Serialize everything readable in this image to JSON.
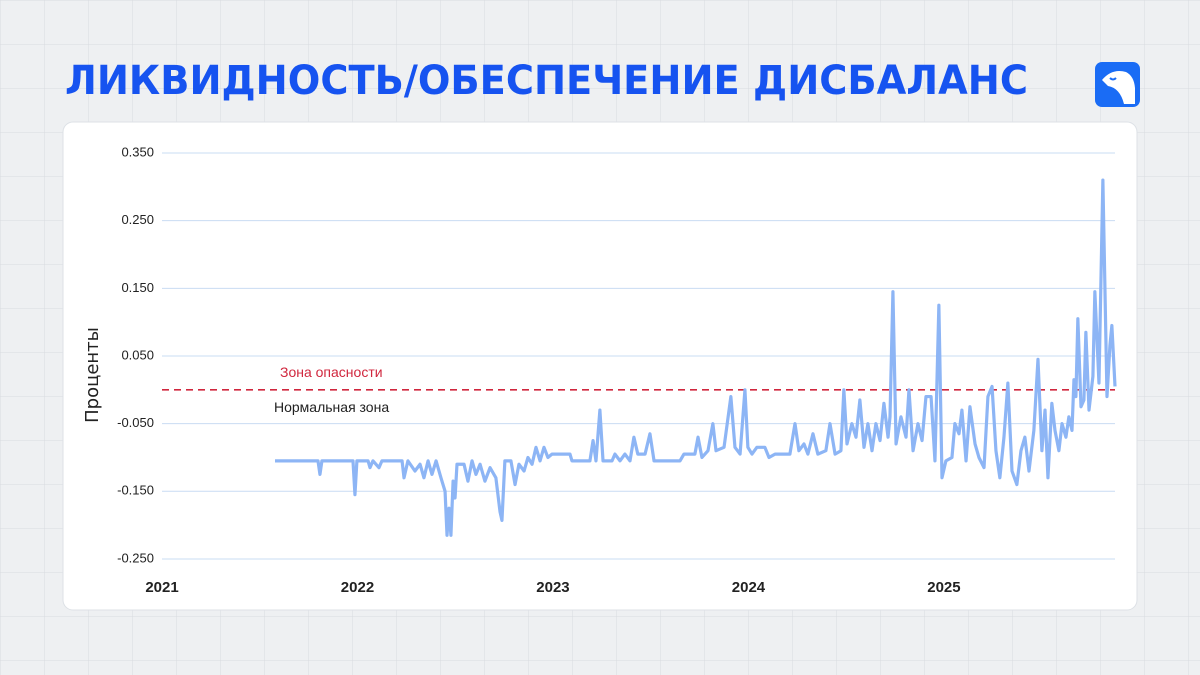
{
  "title": "ЛИКВИДНОСТЬ/ОБЕСПЕЧЕНИЕ ДИСБАЛАНС",
  "chart_data": {
    "type": "line",
    "ylabel": "Проценты",
    "xlim": [
      2021,
      2025.875
    ],
    "xticks": [
      2021,
      2022,
      2023,
      2024,
      2025
    ],
    "ylim": [
      -0.27,
      0.35
    ],
    "yticks": [
      {
        "value": -0.25,
        "label": "-0.250"
      },
      {
        "value": -0.15,
        "label": "-0.150"
      },
      {
        "value": -0.05,
        "label": "-0.050"
      },
      {
        "value": 0.05,
        "label": "0.050"
      },
      {
        "value": 0.15,
        "label": "0.150"
      },
      {
        "value": 0.25,
        "label": "0.250"
      },
      {
        "value": 0.35,
        "label": "0.350"
      }
    ],
    "grid": true,
    "threshold": {
      "value": 0,
      "color": "#d0273e",
      "above_label": "Зона опасности",
      "below_label": "Нормальная зона"
    },
    "series": [
      {
        "color": "#8db5f5",
        "x": [
          2021.578,
          2021.798,
          2021.808,
          2021.818,
          2021.977,
          2021.987,
          2021.997,
          2022.054,
          2022.064,
          2022.079,
          2022.11,
          2022.125,
          2022.228,
          2022.238,
          2022.258,
          2022.294,
          2022.32,
          2022.34,
          2022.361,
          2022.381,
          2022.402,
          2022.427,
          2022.448,
          2022.458,
          2022.468,
          2022.478,
          2022.489,
          2022.499,
          2022.509,
          2022.545,
          2022.565,
          2022.586,
          2022.606,
          2022.627,
          2022.652,
          2022.678,
          2022.708,
          2022.729,
          2022.739,
          2022.754,
          2022.785,
          2022.806,
          2022.826,
          2022.852,
          2022.872,
          2022.893,
          2022.913,
          2022.934,
          2022.954,
          2022.974,
          2022.995,
          2023.087,
          2023.097,
          2023.189,
          2023.205,
          2023.22,
          2023.24,
          2023.256,
          2023.302,
          2023.317,
          2023.343,
          2023.368,
          2023.394,
          2023.414,
          2023.434,
          2023.471,
          2023.496,
          2023.517,
          2023.65,
          2023.67,
          2023.726,
          2023.742,
          2023.762,
          2023.793,
          2023.818,
          2023.834,
          2023.875,
          2023.91,
          2023.931,
          2023.957,
          2023.982,
          2023.997,
          2024.018,
          2024.043,
          2024.084,
          2024.105,
          2024.136,
          2024.212,
          2024.238,
          2024.258,
          2024.284,
          2024.304,
          2024.33,
          2024.355,
          2024.396,
          2024.417,
          2024.443,
          2024.473,
          2024.488,
          2024.504,
          2024.529,
          2024.55,
          2024.57,
          2024.591,
          2024.611,
          2024.632,
          2024.652,
          2024.673,
          2024.693,
          2024.714,
          2024.724,
          2024.739,
          2024.755,
          2024.78,
          2024.806,
          2024.821,
          2024.842,
          2024.867,
          2024.888,
          2024.908,
          2024.934,
          2024.954,
          2024.974,
          2024.99,
          2025.01,
          2025.041,
          2025.056,
          2025.077,
          2025.092,
          2025.113,
          2025.133,
          2025.159,
          2025.179,
          2025.205,
          2025.225,
          2025.246,
          2025.266,
          2025.286,
          2025.307,
          2025.327,
          2025.348,
          2025.373,
          2025.394,
          2025.414,
          2025.435,
          2025.46,
          2025.481,
          2025.501,
          2025.517,
          2025.532,
          2025.552,
          2025.568,
          2025.588,
          2025.604,
          2025.624,
          2025.639,
          2025.655,
          2025.665,
          2025.675,
          2025.685,
          2025.701,
          2025.716,
          2025.726,
          2025.742,
          2025.762,
          2025.772,
          2025.793,
          2025.813,
          2025.834,
          2025.849,
          2025.859,
          2025.875
        ],
        "values": [
          -0.105,
          -0.105,
          -0.125,
          -0.105,
          -0.105,
          -0.155,
          -0.105,
          -0.105,
          -0.115,
          -0.105,
          -0.115,
          -0.105,
          -0.105,
          -0.13,
          -0.105,
          -0.12,
          -0.11,
          -0.13,
          -0.105,
          -0.125,
          -0.105,
          -0.13,
          -0.15,
          -0.215,
          -0.175,
          -0.215,
          -0.135,
          -0.16,
          -0.11,
          -0.11,
          -0.135,
          -0.105,
          -0.125,
          -0.11,
          -0.135,
          -0.115,
          -0.13,
          -0.18,
          -0.193,
          -0.105,
          -0.105,
          -0.14,
          -0.11,
          -0.12,
          -0.1,
          -0.11,
          -0.085,
          -0.105,
          -0.085,
          -0.1,
          -0.095,
          -0.095,
          -0.105,
          -0.105,
          -0.075,
          -0.105,
          -0.03,
          -0.105,
          -0.105,
          -0.095,
          -0.105,
          -0.095,
          -0.105,
          -0.07,
          -0.095,
          -0.095,
          -0.065,
          -0.105,
          -0.105,
          -0.095,
          -0.095,
          -0.07,
          -0.1,
          -0.09,
          -0.05,
          -0.09,
          -0.085,
          -0.01,
          -0.085,
          -0.095,
          0.0,
          -0.085,
          -0.095,
          -0.085,
          -0.085,
          -0.1,
          -0.095,
          -0.095,
          -0.05,
          -0.09,
          -0.08,
          -0.095,
          -0.065,
          -0.095,
          -0.09,
          -0.05,
          -0.095,
          -0.09,
          0.0,
          -0.08,
          -0.05,
          -0.07,
          -0.015,
          -0.085,
          -0.05,
          -0.09,
          -0.05,
          -0.075,
          -0.02,
          -0.07,
          -0.04,
          0.145,
          -0.08,
          -0.04,
          -0.07,
          0.0,
          -0.09,
          -0.05,
          -0.075,
          -0.01,
          -0.01,
          -0.105,
          0.125,
          -0.13,
          -0.105,
          -0.1,
          -0.05,
          -0.065,
          -0.03,
          -0.105,
          -0.025,
          -0.08,
          -0.1,
          -0.115,
          -0.01,
          0.005,
          -0.09,
          -0.13,
          -0.07,
          0.01,
          -0.12,
          -0.14,
          -0.09,
          -0.07,
          -0.12,
          -0.06,
          0.045,
          -0.09,
          -0.03,
          -0.13,
          -0.02,
          -0.06,
          -0.09,
          -0.05,
          -0.07,
          -0.04,
          -0.06,
          0.015,
          -0.01,
          0.105,
          -0.025,
          -0.015,
          0.085,
          -0.03,
          0.02,
          0.145,
          0.01,
          0.31,
          -0.01,
          0.065,
          0.095,
          0.005
        ]
      }
    ]
  }
}
